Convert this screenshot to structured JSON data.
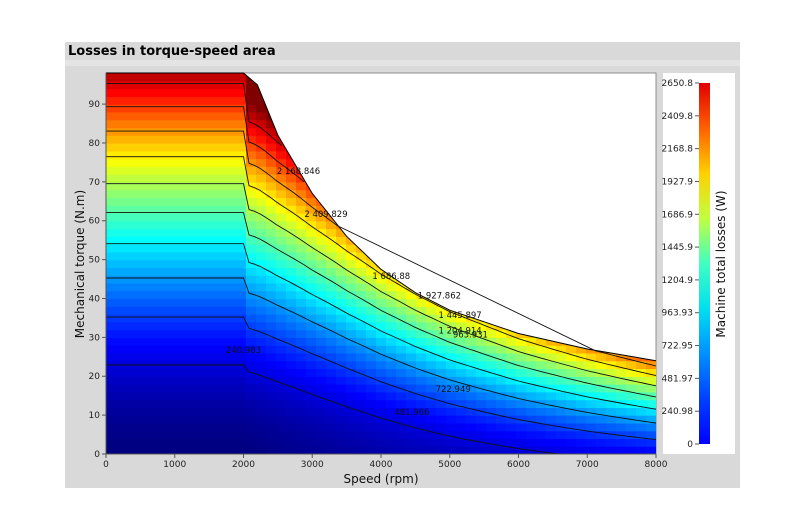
{
  "panel": {
    "title": "Losses in torque-speed area"
  },
  "chart_data": {
    "type": "heatmap",
    "title": "Losses in torque-speed area",
    "xlabel": "Speed (rpm)",
    "ylabel": "Mechanical torque (N.m)",
    "colorbar_label": "Machine total losses (W)",
    "xlim": [
      0,
      8000
    ],
    "ylim": [
      0,
      98
    ],
    "x_ticks": [
      0,
      1000,
      2000,
      3000,
      4000,
      5000,
      6000,
      7000,
      8000
    ],
    "y_ticks": [
      0,
      10,
      20,
      30,
      40,
      50,
      60,
      70,
      80,
      90
    ],
    "colorbar_range": [
      0,
      2650.8
    ],
    "colorbar_ticks": [
      "0",
      "240.98",
      "481.97",
      "722.95",
      "963.93",
      "1204.9",
      "1445.9",
      "1686.9",
      "1927.9",
      "2168.8",
      "2409.8",
      "2650.8"
    ],
    "colormap": "jet",
    "envelope": [
      [
        0,
        98
      ],
      [
        2000,
        98
      ],
      [
        2200,
        95
      ],
      [
        2500,
        82
      ],
      [
        3000,
        67
      ],
      [
        3500,
        56
      ],
      [
        4000,
        47.5
      ],
      [
        4500,
        41.5
      ],
      [
        5000,
        37
      ],
      [
        6000,
        31
      ],
      [
        7000,
        27
      ],
      [
        8000,
        24
      ]
    ],
    "contour_labels": [
      {
        "text": "240.983",
        "speed": 2000,
        "torque": 26
      },
      {
        "text": "481.966",
        "speed": 4450,
        "torque": 10
      },
      {
        "text": "722.949",
        "speed": 5050,
        "torque": 16
      },
      {
        "text": "963.931",
        "speed": 5300,
        "torque": 30
      },
      {
        "text": "1 204.914",
        "speed": 5150,
        "torque": 31
      },
      {
        "text": "1 445.897",
        "speed": 5150,
        "torque": 35
      },
      {
        "text": "1 686.88",
        "speed": 4150,
        "torque": 45
      },
      {
        "text": "1 927.862",
        "speed": 4850,
        "torque": 40
      },
      {
        "text": "2 409.829",
        "speed": 3200,
        "torque": 61
      },
      {
        "text": "2 168.846",
        "speed": 2800,
        "torque": 72
      }
    ]
  }
}
